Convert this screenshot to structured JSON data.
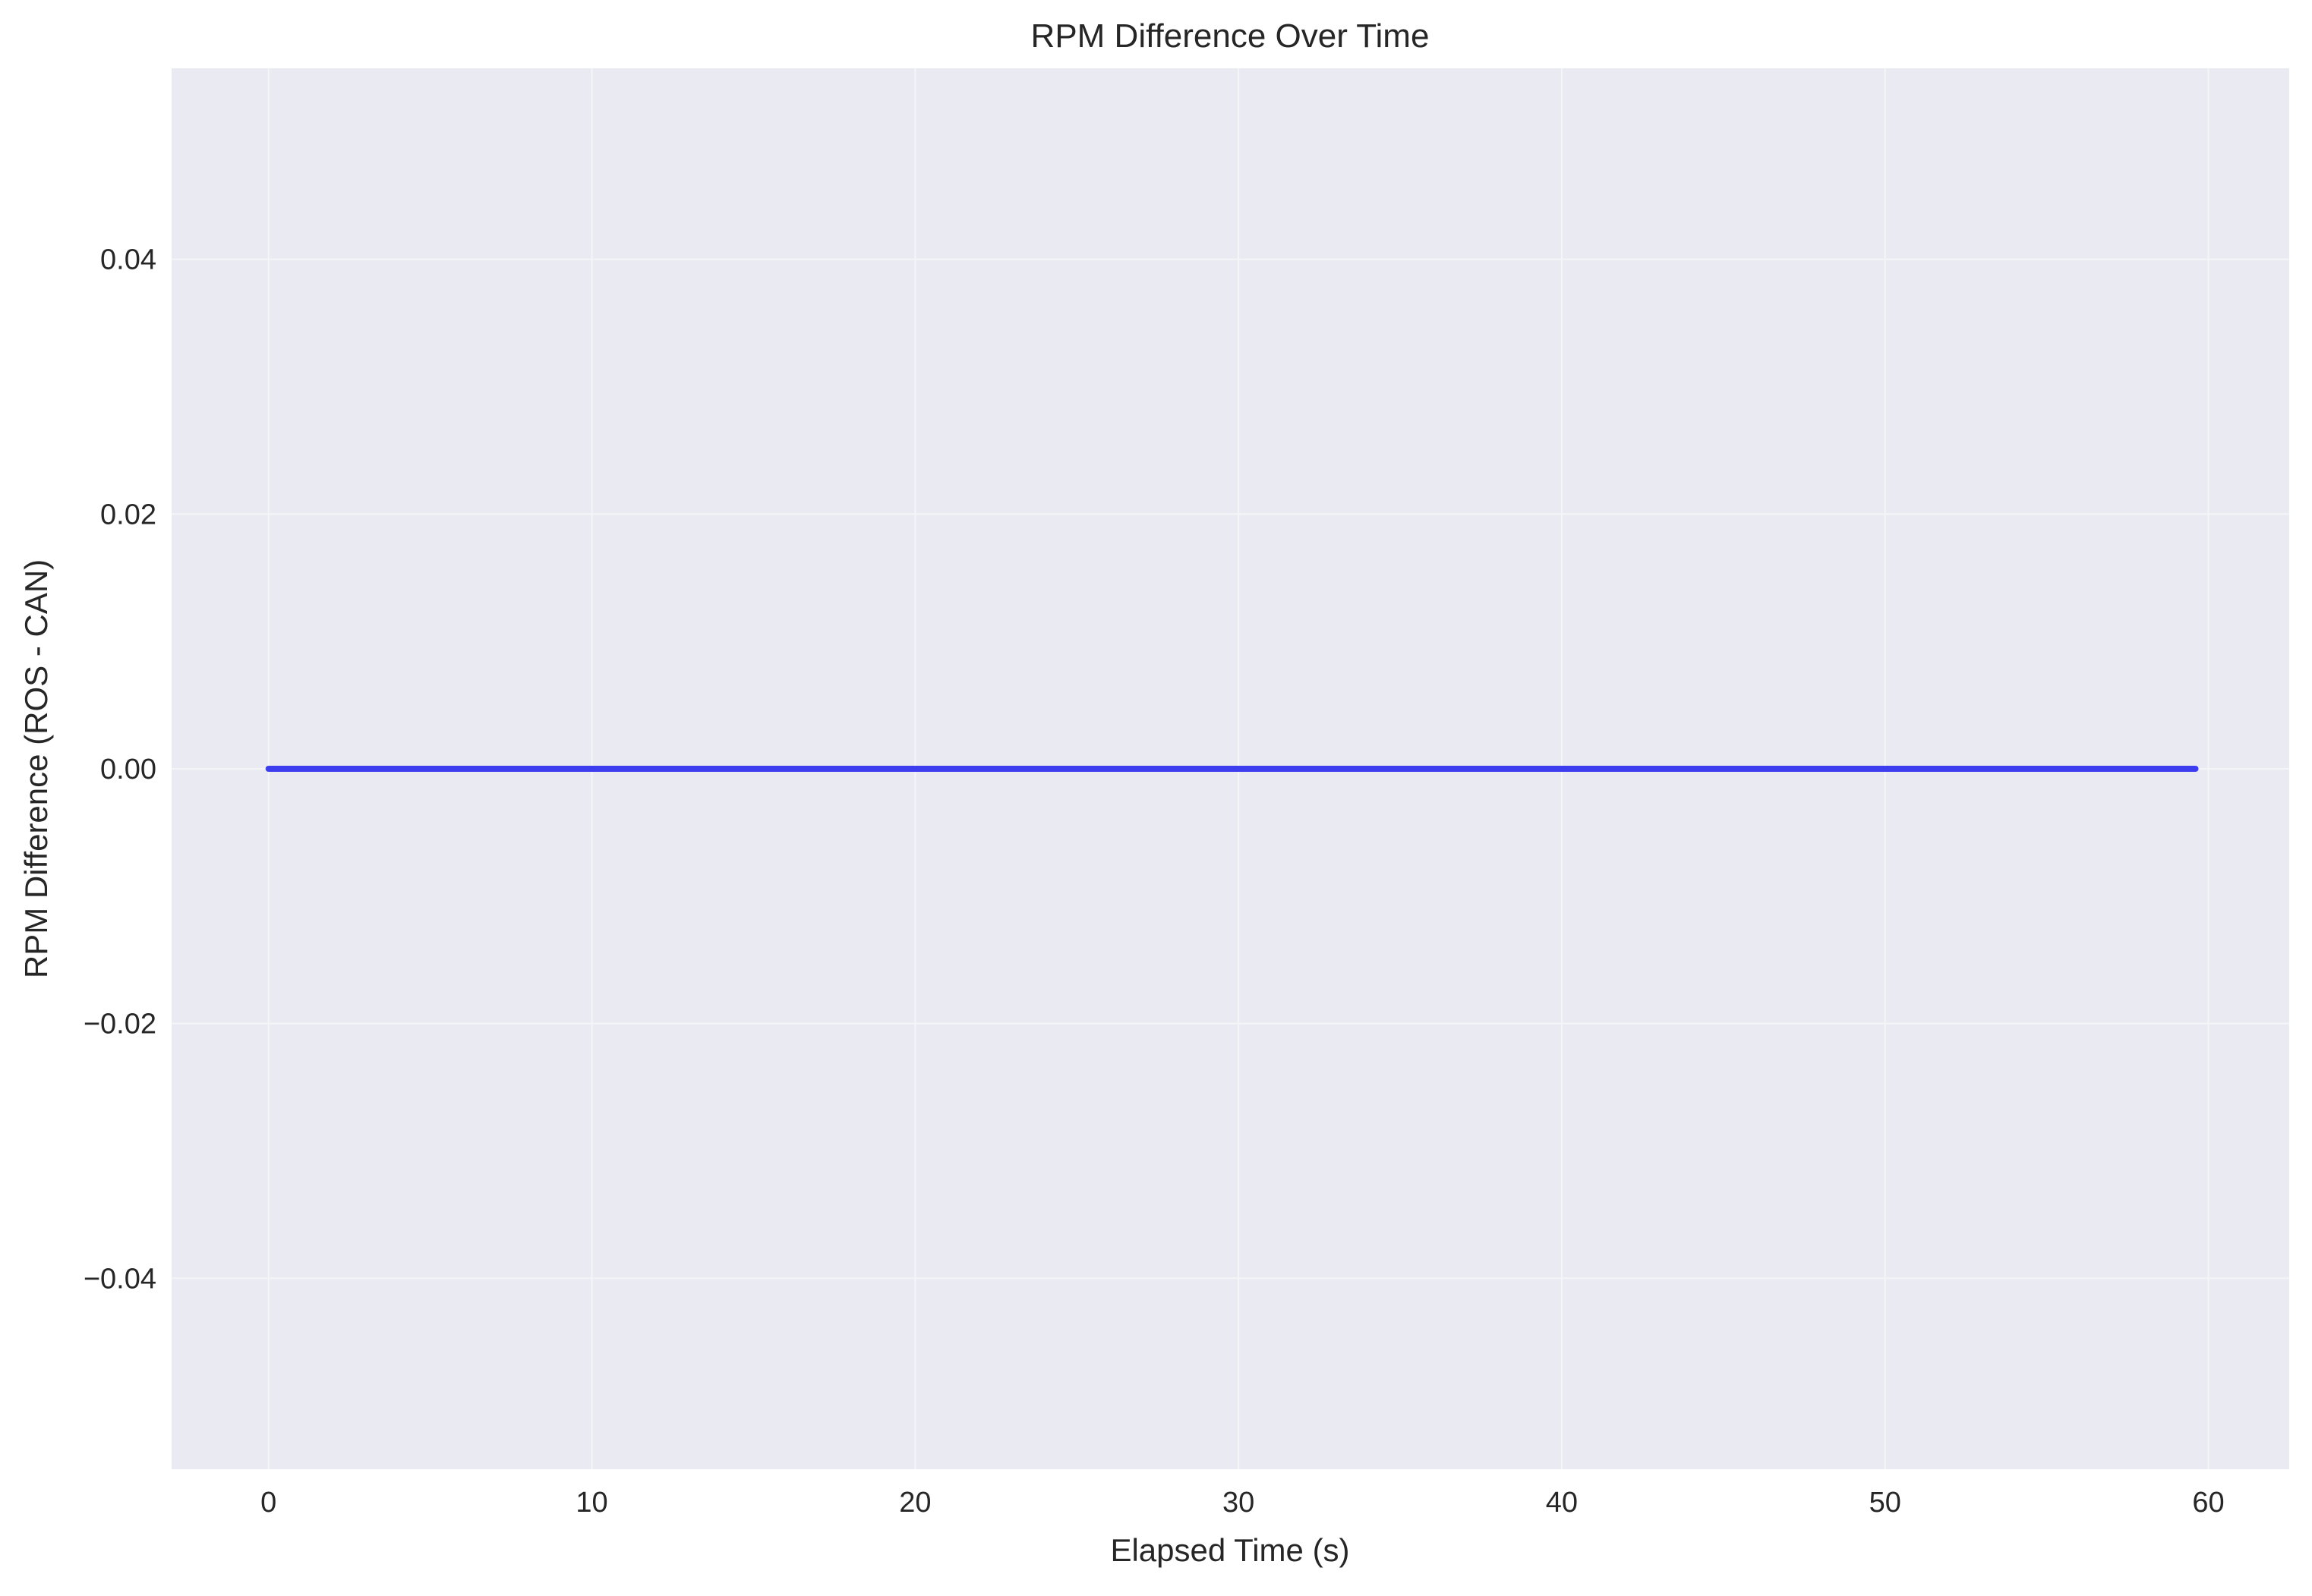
{
  "chart_data": {
    "type": "line",
    "title": "RPM Difference Over Time",
    "xlabel": "Elapsed Time (s)",
    "ylabel": "RPM Difference (ROS - CAN)",
    "xlim": [
      -3,
      62.5
    ],
    "ylim": [
      -0.055,
      0.055
    ],
    "xticks": [
      0,
      10,
      20,
      30,
      40,
      50,
      60
    ],
    "xtick_labels": [
      "0",
      "10",
      "20",
      "30",
      "40",
      "50",
      "60"
    ],
    "yticks": [
      -0.04,
      -0.02,
      0.0,
      0.02,
      0.04
    ],
    "ytick_labels": [
      "−0.04",
      "−0.02",
      "0.00",
      "0.02",
      "0.04"
    ],
    "grid": true,
    "series": [
      {
        "x": [
          0,
          59.6
        ],
        "y": [
          0.0,
          0.0
        ],
        "color": "#3d3df0"
      }
    ]
  },
  "colors": {
    "plot_background": "#eaeaf2",
    "grid": "#f5f5f8",
    "text": "#262626"
  }
}
